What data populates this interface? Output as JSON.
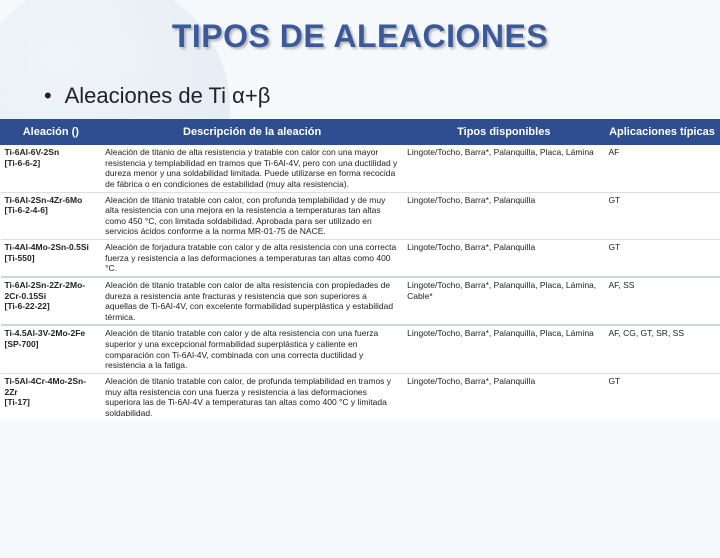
{
  "title": "TIPOS DE ALEACIONES",
  "subtitle": "Aleaciones de Ti α+β",
  "table": {
    "columns": [
      "Aleación ()",
      "Descripción de la aleación",
      "Tipos disponibles",
      "Aplicaciones típicas"
    ],
    "rows": [
      {
        "name": "Ti-6Al-6V-2Sn\n[Ti-6-6-2]",
        "desc": "Aleación de titanio de alta resistencia y tratable con calor con una mayor resistencia y templabilidad en tramos que Ti-6Al-4V, pero con una ductilidad y dureza menor y una soldabilidad limitada. Puede utilizarse en forma recocida de fábrica o en condiciones de estabilidad (muy alta resistencia).",
        "types": "Lingote/Tocho, Barra*, Palanquilla, Placa, Lámina",
        "apps": "AF"
      },
      {
        "name": "Ti-6Al-2Sn-4Zr-6Mo\n[Ti-6-2-4-6]",
        "desc": "Aleación de titanio tratable con calor, con profunda templabilidad y de muy alta resistencia con una mejora en la resistencia a temperaturas tan altas como 450 °C, con limitada soldabilidad. Aprobada para ser utilizado en servicios ácidos conforme a la norma MR-01-75 de NACE.",
        "types": "Lingote/Tocho, Barra*, Palanquilla",
        "apps": "GT"
      },
      {
        "name": "Ti-4Al-4Mo-2Sn-0.5Si\n[Ti-550]",
        "desc": "Aleación de forjadura tratable con calor y de alta resistencia con una correcta fuerza y resistencia a las deformaciones a temperaturas tan altas como 400 °C.",
        "types": "Lingote/Tocho, Barra*, Palanquilla",
        "apps": "GT"
      },
      {
        "name": "Ti-6Al-2Sn-2Zr-2Mo-2Cr-0.15Si\n[Ti-6-22-22]",
        "desc": "Aleación de titanio tratable con calor de alta resistencia con propiedades de dureza a resistencia ante fracturas y resistencia que son superiores a aquellas de Ti-6Al-4V, con excelente formabilidad superplástica y estabilidad térmica.",
        "types": "Lingote/Tocho, Barra*, Palanquilla, Placa, Lámina, Cable*",
        "apps": "AF, SS",
        "gap": true
      },
      {
        "name": "Ti-4.5Al-3V-2Mo-2Fe\n[SP-700]",
        "desc": "Aleación de titanio tratable con calor y de alta resistencia con una fuerza superior y una excepcional formabilidad superplástica y caliente en comparación con Ti-6Al-4V, combinada con una correcta ductilidad y resistencia a la fatiga.",
        "types": "Lingote/Tocho, Barra*, Palanquilla, Placa, Lámina",
        "apps": "AF, CG, GT, SR, SS",
        "gap": true
      },
      {
        "name": "Ti-5Al-4Cr-4Mo-2Sn-2Zr\n[Ti-17]",
        "desc": "Aleación de titanio tratable con calor, de profunda templabilidad en tramos y muy alta resistencia con una fuerza y resistencia a las deformaciones superiora las de Ti-6Al-4V a temperaturas tan altas como 400 °C y limitada soldabilidad.",
        "types": "Lingote/Tocho, Barra*, Palanquilla",
        "apps": "GT"
      }
    ]
  }
}
